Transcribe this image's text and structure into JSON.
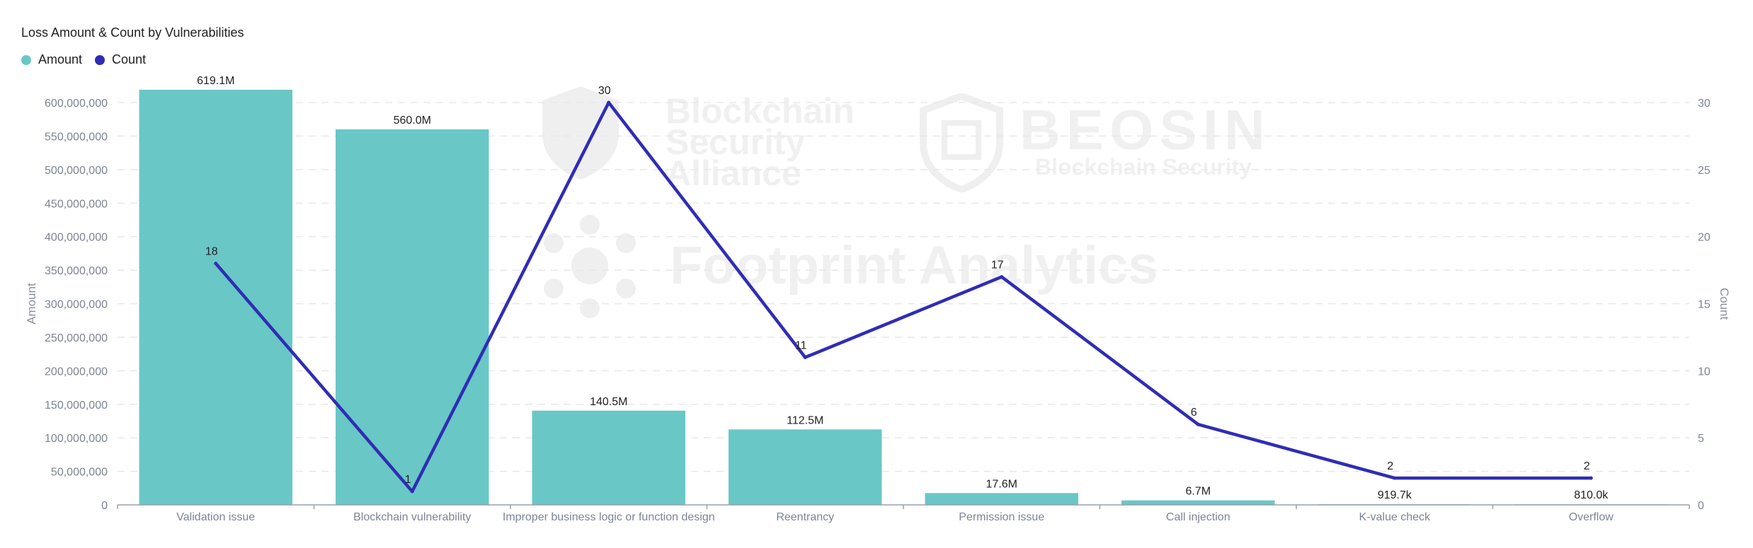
{
  "chart_data": {
    "type": "bar",
    "title": "Loss Amount & Count by Vulnerabilities",
    "categories": [
      "Validation issue",
      "Blockchain vulnerability",
      "Improper business logic or function design",
      "Reentrancy",
      "Permission issue",
      "Call injection",
      "K-value check",
      "Overflow"
    ],
    "series": [
      {
        "name": "Amount",
        "type": "bar",
        "axis": "left",
        "color": "#69c7c6",
        "values": [
          619100000,
          560000000,
          140500000,
          112500000,
          17600000,
          6700000,
          919700,
          810000
        ],
        "labels": [
          "619.1M",
          "560.0M",
          "140.5M",
          "112.5M",
          "17.6M",
          "6.7M",
          "919.7k",
          "810.0k"
        ]
      },
      {
        "name": "Count",
        "type": "line",
        "axis": "right",
        "color": "#2f2db5",
        "values": [
          18,
          1,
          30,
          11,
          17,
          6,
          2,
          2
        ],
        "labels": [
          "18",
          "1",
          "30",
          "11",
          "17",
          "6",
          "2",
          "2"
        ]
      }
    ],
    "ylabel": "Amount",
    "y2label": "Count",
    "ylim": [
      0,
      600000000
    ],
    "y2lim": [
      0,
      30
    ],
    "yticks": [
      "0",
      "50,000,000",
      "100,000,000",
      "150,000,000",
      "200,000,000",
      "250,000,000",
      "300,000,000",
      "350,000,000",
      "400,000,000",
      "450,000,000",
      "500,000,000",
      "550,000,000",
      "600,000,000"
    ],
    "y2ticks": [
      "0",
      "5",
      "10",
      "15",
      "20",
      "25",
      "30"
    ],
    "grid": true,
    "legend_position": "top-left"
  },
  "watermarks": {
    "bsa_line1": "Blockchain",
    "bsa_line2": "Security",
    "bsa_line3": "Alliance",
    "beosin": "BEOSIN",
    "beosin_sub": "Blockchain Security",
    "footprint": "Footprint Analytics"
  }
}
